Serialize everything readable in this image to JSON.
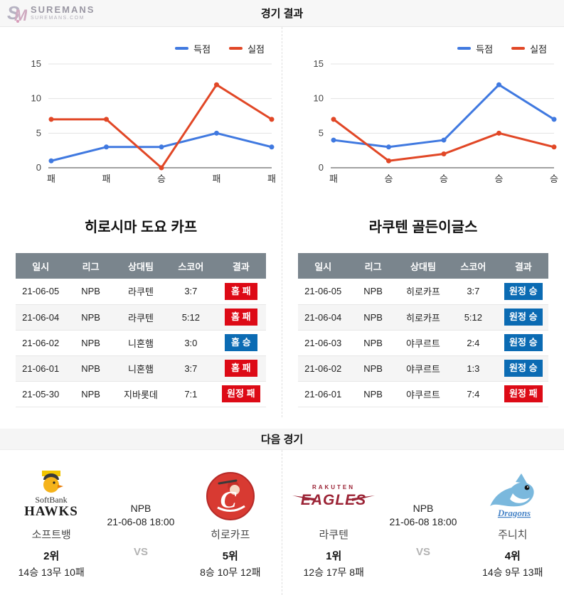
{
  "brand": {
    "name": "SUREMANS",
    "domain": "SUREMANS.COM"
  },
  "header": {
    "title": "경기 결과"
  },
  "colors": {
    "scored_line": "#4079e0",
    "conceded_line": "#e14726",
    "win_badge": "#0b6bb3",
    "loss_badge": "#dd0a16",
    "table_header": "#7a858d"
  },
  "chart_data": [
    {
      "type": "line",
      "categories": [
        "패",
        "패",
        "승",
        "패",
        "패"
      ],
      "series": [
        {
          "name": "득점",
          "values": [
            1,
            3,
            3,
            5,
            3
          ],
          "color": "#4079e0"
        },
        {
          "name": "실점",
          "values": [
            7,
            7,
            0,
            12,
            7
          ],
          "color": "#e14726"
        }
      ],
      "ylim": [
        0,
        15
      ],
      "yticks": [
        0,
        5,
        10,
        15
      ],
      "legend_position": "top-right",
      "grid": true
    },
    {
      "type": "line",
      "categories": [
        "패",
        "승",
        "승",
        "승",
        "승"
      ],
      "series": [
        {
          "name": "득점",
          "values": [
            4,
            3,
            4,
            12,
            7
          ],
          "color": "#4079e0"
        },
        {
          "name": "실점",
          "values": [
            7,
            1,
            2,
            5,
            3
          ],
          "color": "#e14726"
        }
      ],
      "ylim": [
        0,
        15
      ],
      "yticks": [
        0,
        5,
        10,
        15
      ],
      "legend_position": "top-right",
      "grid": true
    }
  ],
  "table_headers": [
    "일시",
    "리그",
    "상대팀",
    "스코어",
    "결과"
  ],
  "teams": [
    {
      "title": "히로시마 도요 카프",
      "rows": [
        {
          "date": "21-06-05",
          "league": "NPB",
          "opponent": "라쿠텐",
          "score": "3:7",
          "result": "홈 패",
          "outcome": "loss"
        },
        {
          "date": "21-06-04",
          "league": "NPB",
          "opponent": "라쿠텐",
          "score": "5:12",
          "result": "홈 패",
          "outcome": "loss"
        },
        {
          "date": "21-06-02",
          "league": "NPB",
          "opponent": "니혼햄",
          "score": "3:0",
          "result": "홈 승",
          "outcome": "win"
        },
        {
          "date": "21-06-01",
          "league": "NPB",
          "opponent": "니혼햄",
          "score": "3:7",
          "result": "홈 패",
          "outcome": "loss"
        },
        {
          "date": "21-05-30",
          "league": "NPB",
          "opponent": "지바롯데",
          "score": "7:1",
          "result": "원정 패",
          "outcome": "loss"
        }
      ]
    },
    {
      "title": "라쿠텐 골든이글스",
      "rows": [
        {
          "date": "21-06-05",
          "league": "NPB",
          "opponent": "히로카프",
          "score": "3:7",
          "result": "원정 승",
          "outcome": "win"
        },
        {
          "date": "21-06-04",
          "league": "NPB",
          "opponent": "히로카프",
          "score": "5:12",
          "result": "원정 승",
          "outcome": "win"
        },
        {
          "date": "21-06-03",
          "league": "NPB",
          "opponent": "야쿠르트",
          "score": "2:4",
          "result": "원정 승",
          "outcome": "win"
        },
        {
          "date": "21-06-02",
          "league": "NPB",
          "opponent": "야쿠르트",
          "score": "1:3",
          "result": "원정 승",
          "outcome": "win"
        },
        {
          "date": "21-06-01",
          "league": "NPB",
          "opponent": "야쿠르트",
          "score": "7:4",
          "result": "원정 패",
          "outcome": "loss"
        }
      ]
    }
  ],
  "next": {
    "title": "다음 경기",
    "matches": [
      {
        "league": "NPB",
        "datetime": "21-06-08 18:00",
        "vs": "VS",
        "home": {
          "name": "소프트뱅",
          "rank": "2위",
          "record": "14승 13무 10패",
          "logo": "softbank-hawks"
        },
        "away": {
          "name": "히로카프",
          "rank": "5위",
          "record": "8승 10무 12패",
          "logo": "hiroshima-carp"
        }
      },
      {
        "league": "NPB",
        "datetime": "21-06-08 18:00",
        "vs": "VS",
        "home": {
          "name": "라쿠텐",
          "rank": "1위",
          "record": "12승 17무 8패",
          "logo": "rakuten-eagles"
        },
        "away": {
          "name": "주니치",
          "rank": "4위",
          "record": "14승 9무 13패",
          "logo": "chunichi-dragons"
        }
      }
    ]
  }
}
